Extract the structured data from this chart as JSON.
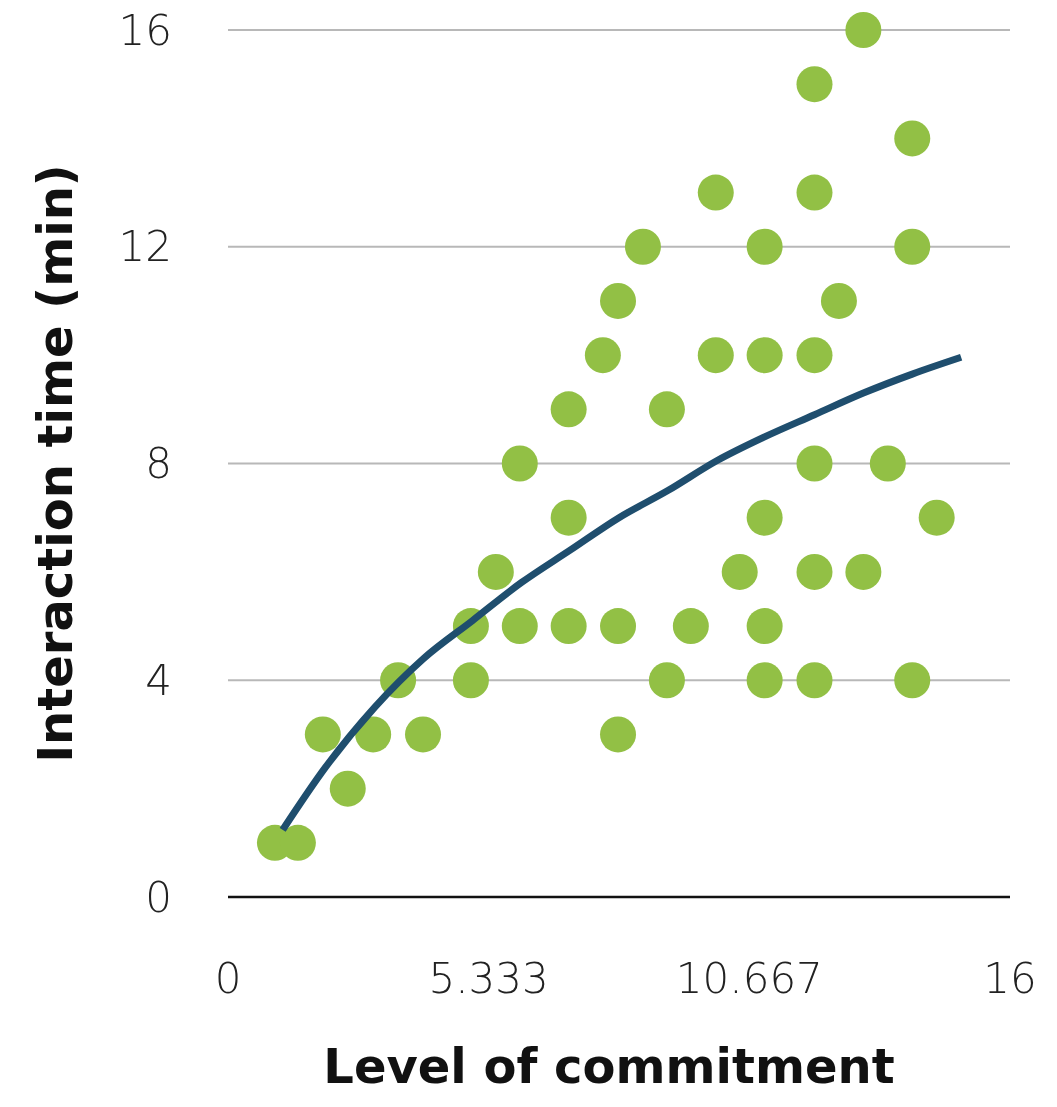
{
  "chart_data": {
    "type": "scatter",
    "xlabel": "Level of commitment",
    "ylabel": "Interaction time (min)",
    "xlim": [
      0,
      16
    ],
    "xticks": [
      0,
      5.333,
      10.667,
      16
    ],
    "ylim": [
      0,
      16
    ],
    "yticks": [
      0,
      4,
      8,
      12,
      16
    ],
    "grid": "y",
    "series": [
      {
        "marker": "circle",
        "color": "#92c045",
        "x": [
          0.96,
          1.43,
          1.94,
          2.45,
          2.97,
          3.48,
          3.99,
          4.97,
          4.97,
          5.48,
          5.97,
          5.97,
          6.97,
          6.97,
          6.97,
          7.67,
          7.98,
          7.98,
          7.98,
          8.49,
          8.98,
          8.98,
          9.47,
          9.98,
          9.98,
          10.47,
          10.98,
          10.98,
          10.98,
          10.98,
          10.98,
          12,
          12,
          12,
          12,
          12,
          12,
          12.5,
          13,
          13,
          13.5,
          14,
          14,
          14,
          14.5
        ],
        "values": [
          1,
          1,
          3,
          2,
          3,
          4,
          3,
          5,
          4,
          6,
          8,
          5,
          9,
          7,
          5,
          10,
          11,
          5,
          3,
          12,
          9,
          4,
          5,
          13,
          10,
          6,
          12,
          10,
          7,
          5,
          4,
          15,
          13,
          10,
          8,
          6,
          4,
          11,
          16,
          6,
          8,
          14,
          12,
          4,
          7
        ]
      },
      {
        "type": "line",
        "marker": "none",
        "color": "#1f4e6e",
        "x": [
          1.12,
          2,
          3,
          4,
          5,
          6,
          7,
          8,
          9,
          10,
          11,
          12,
          13,
          14,
          15
        ],
        "values": [
          1.24,
          2.4,
          3.5,
          4.4,
          5.1,
          5.8,
          6.4,
          7.0,
          7.5,
          8.05,
          8.5,
          8.9,
          9.3,
          9.65,
          9.96
        ]
      }
    ]
  }
}
